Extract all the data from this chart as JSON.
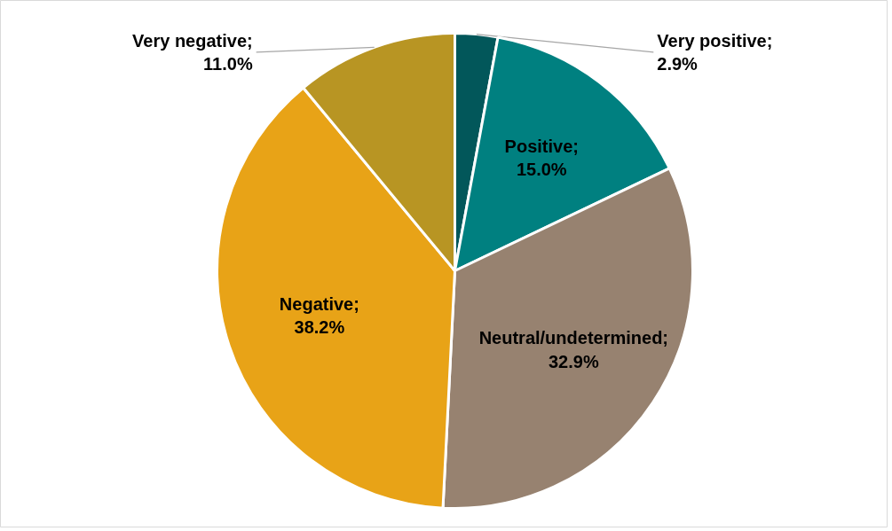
{
  "chart_data": {
    "type": "pie",
    "categories": [
      "Very positive",
      "Positive",
      "Neutral/undetermined",
      "Negative",
      "Very negative"
    ],
    "values": [
      2.9,
      15.0,
      32.9,
      38.2,
      11.0
    ],
    "colors": [
      "#02575a",
      "#008080",
      "#978270",
      "#e8a317",
      "#b89523"
    ],
    "value_labels": [
      "; 2.9%",
      "; 15.0%",
      "; 32.9%",
      "; 38.2%",
      "; 11.0%"
    ]
  }
}
